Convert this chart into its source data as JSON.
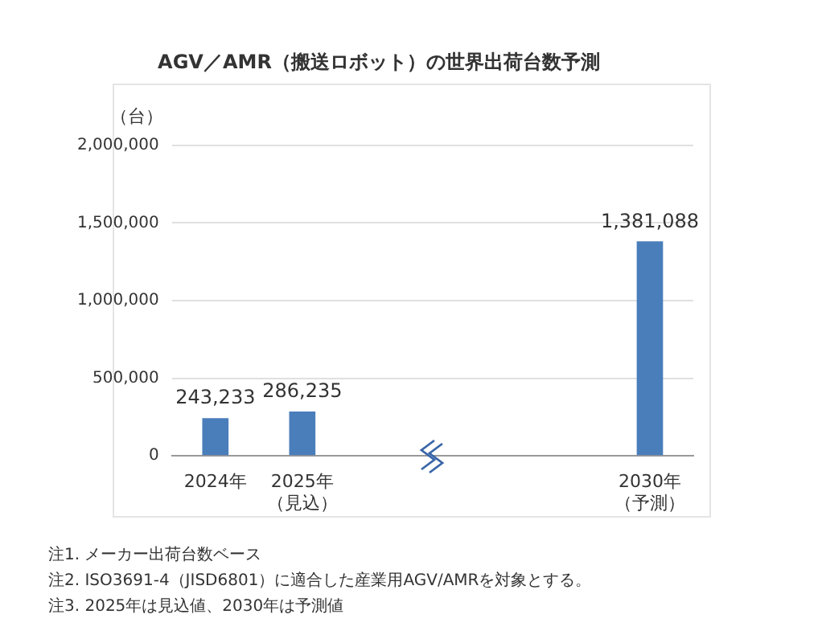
{
  "chart_data": {
    "type": "bar",
    "title": "AGV／AMR（搬送ロボット）の世界出荷台数予測",
    "ylabel": "（台）",
    "categories": [
      "2024年",
      "2025年（見込）",
      null,
      null,
      null,
      "2030年（予測）"
    ],
    "values": [
      243233,
      286235,
      null,
      null,
      null,
      1381088
    ],
    "color": "#4a7ebb",
    "value_labels": [
      "243,233",
      "286,235",
      null,
      null,
      null,
      "1,381,088"
    ],
    "ylim": [
      0,
      2000000
    ],
    "yticks": [
      0,
      {
        "value": 500000,
        "label": "500,000"
      },
      {
        "value": 1000000,
        "label": "1,000,000"
      },
      {
        "value": 1500000,
        "label": "1,500,000"
      },
      {
        "value": 2000000,
        "label": "2,000,000"
      }
    ],
    "grid": "y",
    "legend": false,
    "annotations": [
      "注1. メーカー出荷台数ベース",
      "注2. ISO3691-4（JISD6801）に適合した産業用AGV/AMRを対象とする。",
      "注3. 2025年は見込値、2030年は予測値"
    ]
  }
}
